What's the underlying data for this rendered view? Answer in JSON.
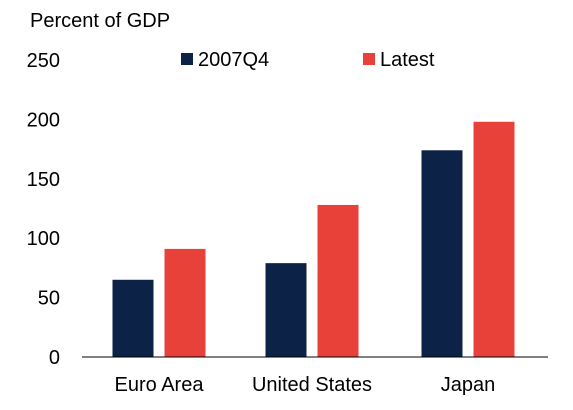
{
  "chart_data": {
    "type": "bar",
    "title": "",
    "ylabel": "Percent of GDP",
    "xlabel": "",
    "categories": [
      "Euro Area",
      "United States",
      "Japan"
    ],
    "series": [
      {
        "name": "2007Q4",
        "values": [
          65,
          79,
          174
        ],
        "color": "#0c2246"
      },
      {
        "name": "Latest",
        "values": [
          91,
          128,
          198
        ],
        "color": "#e8413a"
      }
    ],
    "ylim": [
      0,
      250
    ],
    "yticks": [
      "0",
      "50",
      "100",
      "150",
      "200",
      "250"
    ],
    "grid": false,
    "legend_position": "top"
  }
}
